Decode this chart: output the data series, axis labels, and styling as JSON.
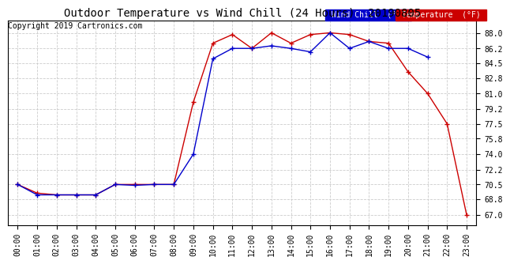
{
  "title": "Outdoor Temperature vs Wind Chill (24 Hours)  20190805",
  "copyright": "Copyright 2019 Cartronics.com",
  "background_color": "#ffffff",
  "plot_bg_color": "#ffffff",
  "grid_color": "#cccccc",
  "x_labels": [
    "00:00",
    "01:00",
    "02:00",
    "03:00",
    "04:00",
    "05:00",
    "06:00",
    "07:00",
    "08:00",
    "09:00",
    "10:00",
    "11:00",
    "12:00",
    "13:00",
    "14:00",
    "15:00",
    "16:00",
    "17:00",
    "18:00",
    "19:00",
    "20:00",
    "21:00",
    "22:00",
    "23:00"
  ],
  "y_ticks": [
    67.0,
    68.8,
    70.5,
    72.2,
    74.0,
    75.8,
    77.5,
    79.2,
    81.0,
    82.8,
    84.5,
    86.2,
    88.0
  ],
  "ylim": [
    65.8,
    89.4
  ],
  "temp_color": "#cc0000",
  "windchill_color": "#0000cc",
  "marker": "+",
  "marker_size": 4,
  "marker_linewidth": 1.0,
  "line_width": 1.0,
  "temperature": [
    70.5,
    69.5,
    69.3,
    69.3,
    69.3,
    70.5,
    70.5,
    70.5,
    70.5,
    80.0,
    86.8,
    87.8,
    86.2,
    88.0,
    86.8,
    87.8,
    88.0,
    87.8,
    87.0,
    86.8,
    83.5,
    81.0,
    77.5,
    67.0
  ],
  "wind_chill": [
    70.5,
    69.3,
    69.3,
    69.3,
    69.3,
    70.5,
    70.4,
    70.5,
    70.5,
    74.0,
    85.0,
    86.2,
    86.2,
    86.5,
    86.2,
    85.8,
    88.0,
    86.2,
    87.0,
    86.2,
    86.2,
    85.2,
    null,
    null
  ],
  "legend_windchill_label": "Wind Chill  (°F)",
  "legend_temp_label": "Temperature  (°F)",
  "windchill_legend_color": "#0000cc",
  "temp_legend_color": "#cc0000",
  "font_size_title": 10,
  "font_size_ticks": 7,
  "font_size_copyright": 7,
  "font_size_legend": 7
}
